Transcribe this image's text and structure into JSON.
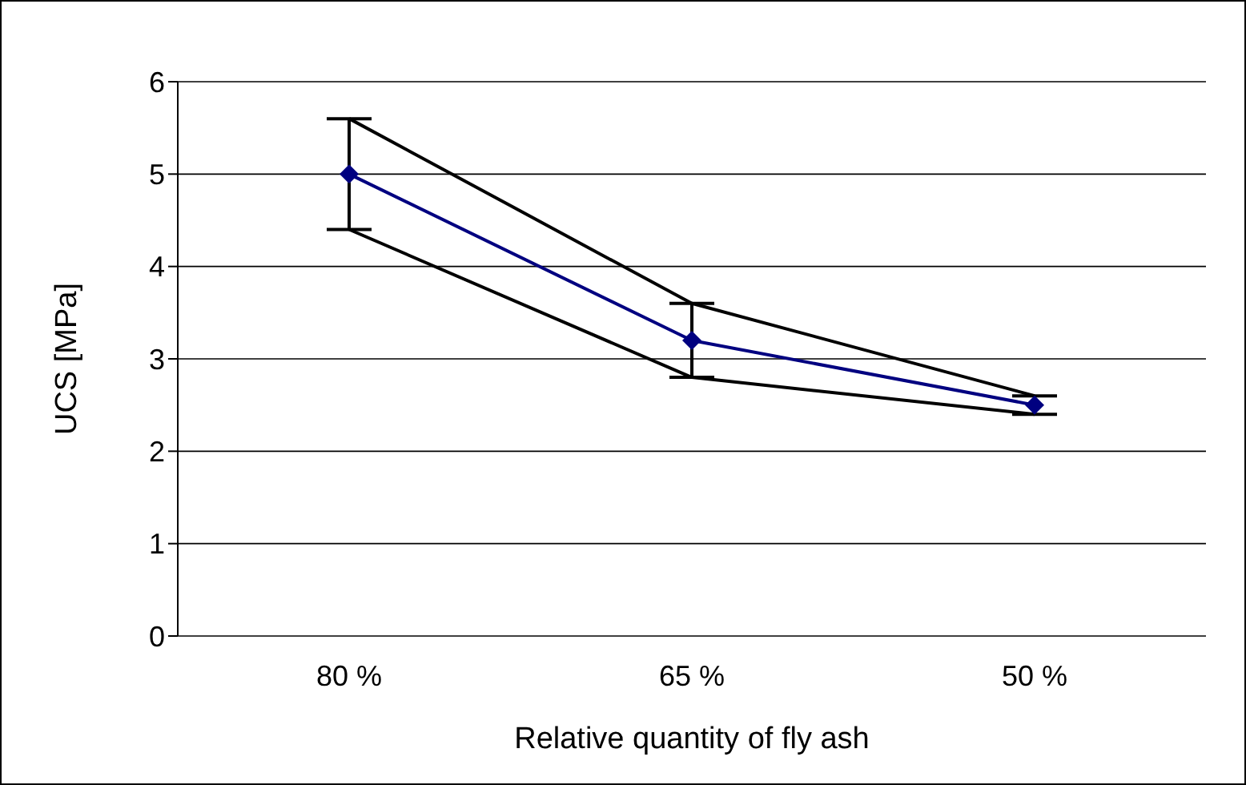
{
  "chart_data": {
    "type": "line",
    "xlabel": "Relative quantity of fly ash",
    "ylabel": "UCS [MPa]",
    "categories": [
      "80 %",
      "65 %",
      "50 %"
    ],
    "series": [
      {
        "color": "#000000",
        "values": [
          5.6,
          3.6,
          2.6
        ],
        "marker": "none"
      },
      {
        "color": "#000000",
        "values": [
          4.4,
          2.8,
          2.4
        ],
        "marker": "none"
      },
      {
        "color": "#000080",
        "values": [
          5.0,
          3.2,
          2.5
        ],
        "marker": "diamond",
        "errors": [
          [
            4.4,
            5.6
          ],
          [
            2.8,
            3.6
          ],
          [
            2.4,
            2.6
          ]
        ]
      }
    ],
    "ylim": [
      0,
      6
    ],
    "yticks": [
      0,
      1,
      2,
      3,
      4,
      5,
      6
    ],
    "grid": "y"
  }
}
